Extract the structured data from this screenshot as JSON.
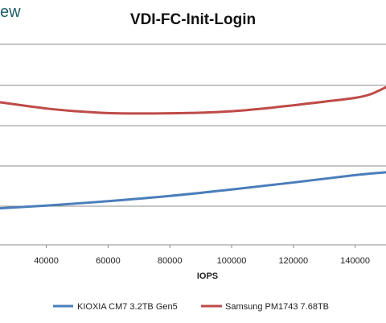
{
  "logo_fragment": "ew",
  "chart_data": {
    "type": "line",
    "title": "VDI-FC-Init-Login",
    "xlabel": "IOPS",
    "ylabel": "",
    "x_ticks": [
      40000,
      60000,
      80000,
      100000,
      120000,
      140000
    ],
    "x_tick_labels": [
      "40000",
      "60000",
      "80000",
      "100000",
      "120000",
      "140000"
    ],
    "xlim": [
      25000,
      150000
    ],
    "ylim": [
      0,
      1
    ],
    "grid": true,
    "legend_position": "bottom",
    "series": [
      {
        "name": "KIOXIA CM7 3.2TB Gen5",
        "color": "#4a7ebb",
        "x": [
          25000,
          40000,
          60000,
          80000,
          100000,
          120000,
          140000,
          150000
        ],
        "y": [
          0.182,
          0.196,
          0.218,
          0.244,
          0.276,
          0.311,
          0.348,
          0.362
        ]
      },
      {
        "name": "Samsung PM1743 7.68TB",
        "color": "#be4b48",
        "x": [
          25000,
          40000,
          50000,
          60000,
          70000,
          80000,
          90000,
          100000,
          110000,
          120000,
          130000,
          140000,
          145000,
          150000
        ],
        "y": [
          0.711,
          0.68,
          0.666,
          0.657,
          0.655,
          0.656,
          0.659,
          0.666,
          0.679,
          0.696,
          0.714,
          0.733,
          0.751,
          0.786
        ]
      }
    ]
  }
}
